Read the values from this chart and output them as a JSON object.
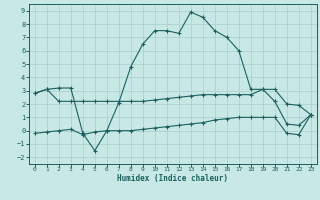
{
  "background_color": "#c8e8e5",
  "grid_color": "#a8ceca",
  "line_color": "#1a6060",
  "x_label": "Humidex (Indice chaleur)",
  "xlim": [
    -0.5,
    23.5
  ],
  "ylim": [
    -2.5,
    9.5
  ],
  "xticks": [
    0,
    1,
    2,
    3,
    4,
    5,
    6,
    7,
    8,
    9,
    10,
    11,
    12,
    13,
    14,
    15,
    16,
    17,
    18,
    19,
    20,
    21,
    22,
    23
  ],
  "yticks": [
    -2,
    -1,
    0,
    1,
    2,
    3,
    4,
    5,
    6,
    7,
    8,
    9
  ],
  "s1_x": [
    0,
    1,
    2,
    3,
    4,
    5,
    6,
    7,
    8,
    9,
    10,
    11,
    12,
    13,
    14,
    15,
    16,
    17,
    18,
    19,
    20,
    21,
    22,
    23
  ],
  "s1_y": [
    2.8,
    3.1,
    2.2,
    2.2,
    2.2,
    2.2,
    2.2,
    2.2,
    2.2,
    2.2,
    2.3,
    2.4,
    2.5,
    2.6,
    2.7,
    2.7,
    2.7,
    2.7,
    2.7,
    3.1,
    3.1,
    2.0,
    1.9,
    1.2
  ],
  "s2_x": [
    0,
    1,
    2,
    3,
    4,
    5,
    6,
    7,
    8,
    9,
    10,
    11,
    12,
    13,
    14,
    15,
    16,
    17,
    18,
    19,
    20,
    21,
    22,
    23
  ],
  "s2_y": [
    2.8,
    3.1,
    3.2,
    3.2,
    -0.2,
    -1.5,
    0.0,
    2.1,
    4.8,
    6.5,
    7.5,
    7.5,
    7.3,
    8.9,
    8.5,
    7.5,
    7.0,
    6.0,
    3.1,
    3.1,
    2.2,
    0.5,
    0.4,
    1.2
  ],
  "s3_x": [
    0,
    1,
    2,
    3,
    4,
    5,
    6,
    7,
    8,
    9,
    10,
    11,
    12,
    13,
    14,
    15,
    16,
    17,
    18,
    19,
    20,
    21,
    22,
    23
  ],
  "s3_y": [
    -0.2,
    -0.1,
    0.0,
    0.1,
    -0.3,
    -0.1,
    0.0,
    0.0,
    0.0,
    0.1,
    0.2,
    0.3,
    0.4,
    0.5,
    0.6,
    0.8,
    0.9,
    1.0,
    1.0,
    1.0,
    1.0,
    -0.2,
    -0.3,
    1.2
  ]
}
